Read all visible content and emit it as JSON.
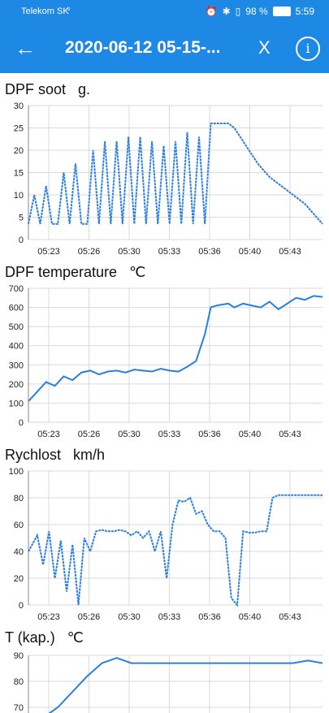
{
  "status": {
    "carrier": "Telekom SK",
    "signal": "4G",
    "battery": "98 %",
    "time": "5:59"
  },
  "appbar": {
    "title": "2020-06-12 05-15-...",
    "close_label": "X",
    "info_label": "i"
  },
  "colors": {
    "accent": "#1e88e5",
    "line": "#2a7fe0",
    "grid": "#d9d9d9"
  },
  "charts": [
    {
      "title_text": "DPF soot   g.",
      "chart_data": {
        "type": "line",
        "title": "DPF soot",
        "unit": "g.",
        "yticks": [
          0,
          5,
          10,
          15,
          20,
          25,
          30
        ],
        "ylim": [
          0,
          30
        ],
        "xticks": [
          "05:23",
          "05:26",
          "05:30",
          "05:33",
          "05:36",
          "05:40",
          "05:43"
        ],
        "series": [
          {
            "x": [
              0,
              2,
              4,
              6,
              8,
              10,
              12,
              14,
              16,
              18,
              20,
              22,
              24,
              26,
              28,
              30,
              32,
              34,
              36,
              38,
              40,
              42,
              44,
              46,
              48,
              50,
              52,
              54,
              56,
              58,
              60,
              62,
              64,
              66,
              68,
              70,
              72,
              74,
              76,
              78,
              80,
              82,
              84,
              86,
              88,
              90,
              92,
              94,
              96,
              98,
              100
            ],
            "y": [
              3.5,
              10,
              3.5,
              12,
              3.5,
              3.5,
              15,
              3.5,
              17,
              3.5,
              3.5,
              20,
              3.5,
              22,
              3.5,
              22,
              3.5,
              23,
              3.5,
              23,
              3.5,
              22,
              3.5,
              21,
              3.5,
              22,
              3.5,
              24,
              3.5,
              23,
              3.5,
              26,
              26,
              26,
              26,
              25,
              23,
              21,
              19,
              17,
              15.5,
              14,
              13,
              12,
              11,
              10,
              9,
              8,
              6.5,
              5,
              3.5
            ]
          }
        ]
      }
    },
    {
      "title_text": "DPF temperature   ℃",
      "chart_data": {
        "type": "line",
        "title": "DPF temperature",
        "unit": "℃",
        "yticks": [
          0,
          100,
          200,
          300,
          400,
          500,
          600,
          700
        ],
        "ylim": [
          0,
          700
        ],
        "xticks": [
          "05:23",
          "05:26",
          "05:30",
          "05:33",
          "05:36",
          "05:40",
          "05:43"
        ],
        "series": [
          {
            "x": [
              0,
              3,
              6,
              9,
              12,
              15,
              18,
              21,
              24,
              27,
              30,
              33,
              36,
              39,
              42,
              45,
              48,
              51,
              54,
              57,
              60,
              62,
              64,
              66,
              68,
              70,
              73,
              76,
              79,
              82,
              85,
              88,
              91,
              94,
              97,
              100
            ],
            "y": [
              110,
              160,
              210,
              190,
              240,
              220,
              260,
              270,
              250,
              265,
              270,
              260,
              275,
              270,
              265,
              280,
              270,
              265,
              290,
              320,
              460,
              600,
              610,
              615,
              620,
              600,
              620,
              610,
              600,
              630,
              590,
              620,
              650,
              640,
              660,
              655
            ]
          }
        ]
      }
    },
    {
      "title_text": "Rychlost   km/h",
      "chart_data": {
        "type": "line",
        "title": "Rychlost",
        "unit": "km/h",
        "yticks": [
          0,
          20,
          40,
          60,
          80,
          100
        ],
        "ylim": [
          0,
          100
        ],
        "xticks": [
          "05:23",
          "05:26",
          "05:30",
          "05:33",
          "05:36",
          "05:40",
          "05:43"
        ],
        "series": [
          {
            "x": [
              0,
              3,
              5,
              7,
              9,
              11,
              13,
              15,
              17,
              19,
              21,
              23,
              25,
              27,
              29,
              31,
              33,
              35,
              37,
              39,
              41,
              43,
              45,
              47,
              49,
              51,
              53,
              55,
              57,
              59,
              61,
              63,
              65,
              67,
              69,
              71,
              73,
              75,
              77,
              79,
              81,
              83,
              85,
              87,
              89,
              91,
              93,
              95,
              97,
              100
            ],
            "y": [
              40,
              52,
              30,
              55,
              20,
              48,
              10,
              45,
              0,
              50,
              40,
              55,
              56,
              55,
              55,
              56,
              55,
              52,
              55,
              50,
              55,
              40,
              55,
              20,
              60,
              78,
              77,
              80,
              68,
              70,
              60,
              55,
              55,
              50,
              5,
              0,
              55,
              54,
              54,
              55,
              55,
              80,
              82,
              82,
              82,
              82,
              82,
              82,
              82,
              82
            ]
          }
        ]
      }
    },
    {
      "title_text": "T (kap.)   ℃",
      "chart_data": {
        "type": "line",
        "title": "T (kap.)",
        "unit": "℃",
        "yticks": [
          70,
          80,
          90
        ],
        "ylim": [
          65,
          90
        ],
        "xticks": [],
        "series": [
          {
            "x": [
              0,
              5,
              10,
              15,
              20,
              25,
              30,
              35,
              40,
              45,
              50,
              55,
              60,
              65,
              70,
              75,
              80,
              85,
              90,
              95,
              100
            ],
            "y": [
              62,
              66,
              70,
              76,
              82,
              87,
              89,
              87,
              87,
              87,
              87,
              87,
              87,
              87,
              87,
              87,
              87,
              87,
              87,
              88,
              87
            ]
          }
        ]
      }
    }
  ]
}
